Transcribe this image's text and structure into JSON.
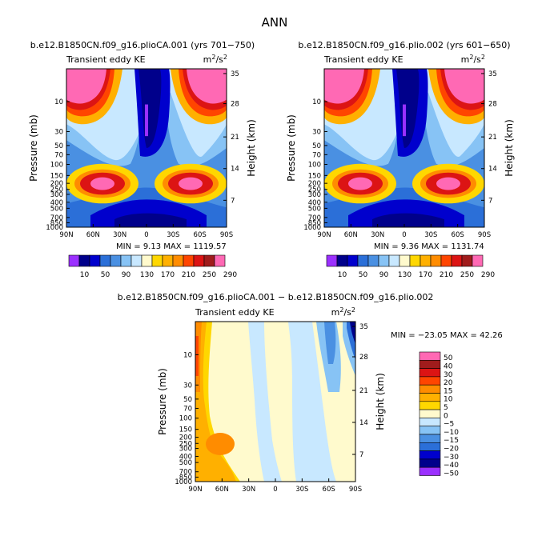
{
  "chart_data": {
    "title": "ANN",
    "panels": [
      {
        "type": "heatmap",
        "case": "b.e12.B1850CN.f09_g16.plioCA.001",
        "years": "(yrs 701−750)",
        "variable": "Transient eddy KE",
        "units_base": "m",
        "units_exp": "2",
        "units_den": "/s",
        "units_den_exp": "2",
        "ylabel": "Pressure (mb)",
        "y2label": "Height (km)",
        "min_label": "MIN =",
        "min": "9.13",
        "max_label": "MAX =",
        "max": "1119.57",
        "x_ticks": [
          "90N",
          "60N",
          "30N",
          "0",
          "30S",
          "60S",
          "90S"
        ],
        "p_ticks": [
          "10",
          "30",
          "50",
          "70",
          "100",
          "150",
          "200",
          "250",
          "300",
          "400",
          "500",
          "700",
          "850",
          "1000"
        ],
        "h_ticks": [
          "35",
          "28",
          "21",
          "14",
          "7"
        ]
      },
      {
        "type": "heatmap",
        "case": "b.e12.B1850CN.f09_g16.plio.002",
        "years": "(yrs 601−650)",
        "variable": "Transient eddy KE",
        "units_base": "m",
        "units_exp": "2",
        "units_den": "/s",
        "units_den_exp": "2",
        "ylabel": "Pressure (mb)",
        "y2label": "Height (km)",
        "min_label": "MIN =",
        "min": "9.36",
        "max_label": "MAX =",
        "max": "1131.74",
        "x_ticks": [
          "90N",
          "60N",
          "30N",
          "0",
          "30S",
          "60S",
          "90S"
        ],
        "p_ticks": [
          "10",
          "30",
          "50",
          "70",
          "100",
          "150",
          "200",
          "250",
          "300",
          "400",
          "500",
          "700",
          "850",
          "1000"
        ],
        "h_ticks": [
          "35",
          "28",
          "21",
          "14",
          "7"
        ]
      },
      {
        "type": "heatmap",
        "title": "b.e12.B1850CN.f09_g16.plioCA.001 − b.e12.B1850CN.f09_g16.plio.002",
        "variable": "Transient eddy KE",
        "units_base": "m",
        "units_exp": "2",
        "units_den": "/s",
        "units_den_exp": "2",
        "ylabel": "Pressure (mb)",
        "y2label": "Height (km)",
        "min_label": "MIN =",
        "min": "−23.05",
        "max_label": "MAX =",
        "max": "42.26",
        "x_ticks": [
          "90N",
          "60N",
          "30N",
          "0",
          "30S",
          "60S",
          "90S"
        ],
        "p_ticks": [
          "10",
          "30",
          "50",
          "70",
          "100",
          "150",
          "200",
          "250",
          "300",
          "400",
          "500",
          "700",
          "850",
          "1000"
        ],
        "h_ticks": [
          "35",
          "28",
          "21",
          "14",
          "7"
        ]
      }
    ],
    "colorbar_top": {
      "labels": [
        "10",
        "50",
        "90",
        "130",
        "170",
        "210",
        "250",
        "290"
      ],
      "colors": [
        "#9b30ff",
        "#00008b",
        "#0000cd",
        "#2b6fd8",
        "#4a90e2",
        "#87c3f5",
        "#c8e8ff",
        "#fffacd",
        "#ffd700",
        "#ffb000",
        "#ff8c00",
        "#ff4500",
        "#dc1414",
        "#a01c1c",
        "#ff69b4"
      ]
    },
    "colorbar_diff": {
      "labels": [
        "50",
        "40",
        "30",
        "20",
        "15",
        "10",
        "5",
        "0",
        "−5",
        "−10",
        "−15",
        "−20",
        "−30",
        "−40",
        "−50"
      ],
      "colors": [
        "#ff69b4",
        "#a01c1c",
        "#dc1414",
        "#ff4500",
        "#ff8c00",
        "#ffb000",
        "#ffd700",
        "#fffacd",
        "#c8e8ff",
        "#87c3f5",
        "#4a90e2",
        "#2b6fd8",
        "#0000cd",
        "#00008b",
        "#9b30ff"
      ]
    }
  }
}
